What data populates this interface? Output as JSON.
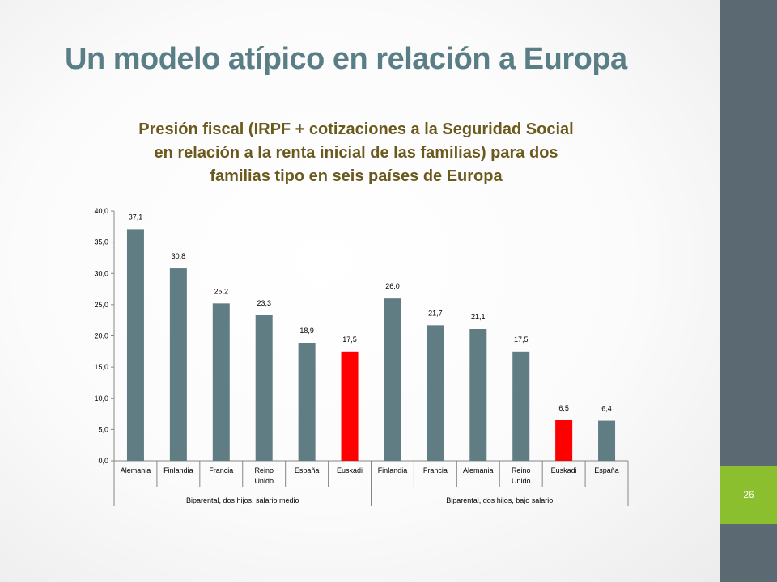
{
  "slide": {
    "title": "Un modelo atípico en relación a Europa",
    "page_number": "26"
  },
  "colors": {
    "bar_default": "#617d84",
    "bar_highlight": "#ff0000",
    "title": "#5a7e86",
    "chart_title": "#6b5a1e"
  },
  "chart_data": {
    "type": "bar",
    "title_lines": [
      "Presión fiscal (IRPF + cotizaciones a la Seguridad Social",
      "en relación a la renta inicial de las familias) para dos",
      "familias tipo en seis países de Europa"
    ],
    "ylim": [
      0,
      40
    ],
    "yticks": [
      "0,0",
      "5,0",
      "10,0",
      "15,0",
      "20,0",
      "25,0",
      "30,0",
      "35,0",
      "40,0"
    ],
    "ytick_values": [
      0,
      5,
      10,
      15,
      20,
      25,
      30,
      35,
      40
    ],
    "groups": [
      {
        "label": "Biparental, dos hijos, salario medio",
        "count": 6
      },
      {
        "label": "Biparental, dos hijos, bajo salario",
        "count": 6
      }
    ],
    "bars": [
      {
        "category": [
          "Alemania"
        ],
        "value": 37.1,
        "label": "37,1",
        "highlight": false
      },
      {
        "category": [
          "Finlandia"
        ],
        "value": 30.8,
        "label": "30,8",
        "highlight": false
      },
      {
        "category": [
          "Francia"
        ],
        "value": 25.2,
        "label": "25,2",
        "highlight": false
      },
      {
        "category": [
          "Reino",
          "Unido"
        ],
        "value": 23.3,
        "label": "23,3",
        "highlight": false
      },
      {
        "category": [
          "España"
        ],
        "value": 18.9,
        "label": "18,9",
        "highlight": false
      },
      {
        "category": [
          "Euskadi"
        ],
        "value": 17.5,
        "label": "17,5",
        "highlight": true
      },
      {
        "category": [
          "Finlandia"
        ],
        "value": 26.0,
        "label": "26,0",
        "highlight": false
      },
      {
        "category": [
          "Francia"
        ],
        "value": 21.7,
        "label": "21,7",
        "highlight": false
      },
      {
        "category": [
          "Alemania"
        ],
        "value": 21.1,
        "label": "21,1",
        "highlight": false
      },
      {
        "category": [
          "Reino",
          "Unido"
        ],
        "value": 17.5,
        "label": "17,5",
        "highlight": false
      },
      {
        "category": [
          "Euskadi"
        ],
        "value": 6.5,
        "label": "6,5",
        "highlight": true
      },
      {
        "category": [
          "España"
        ],
        "value": 6.4,
        "label": "6,4",
        "highlight": false
      }
    ]
  }
}
